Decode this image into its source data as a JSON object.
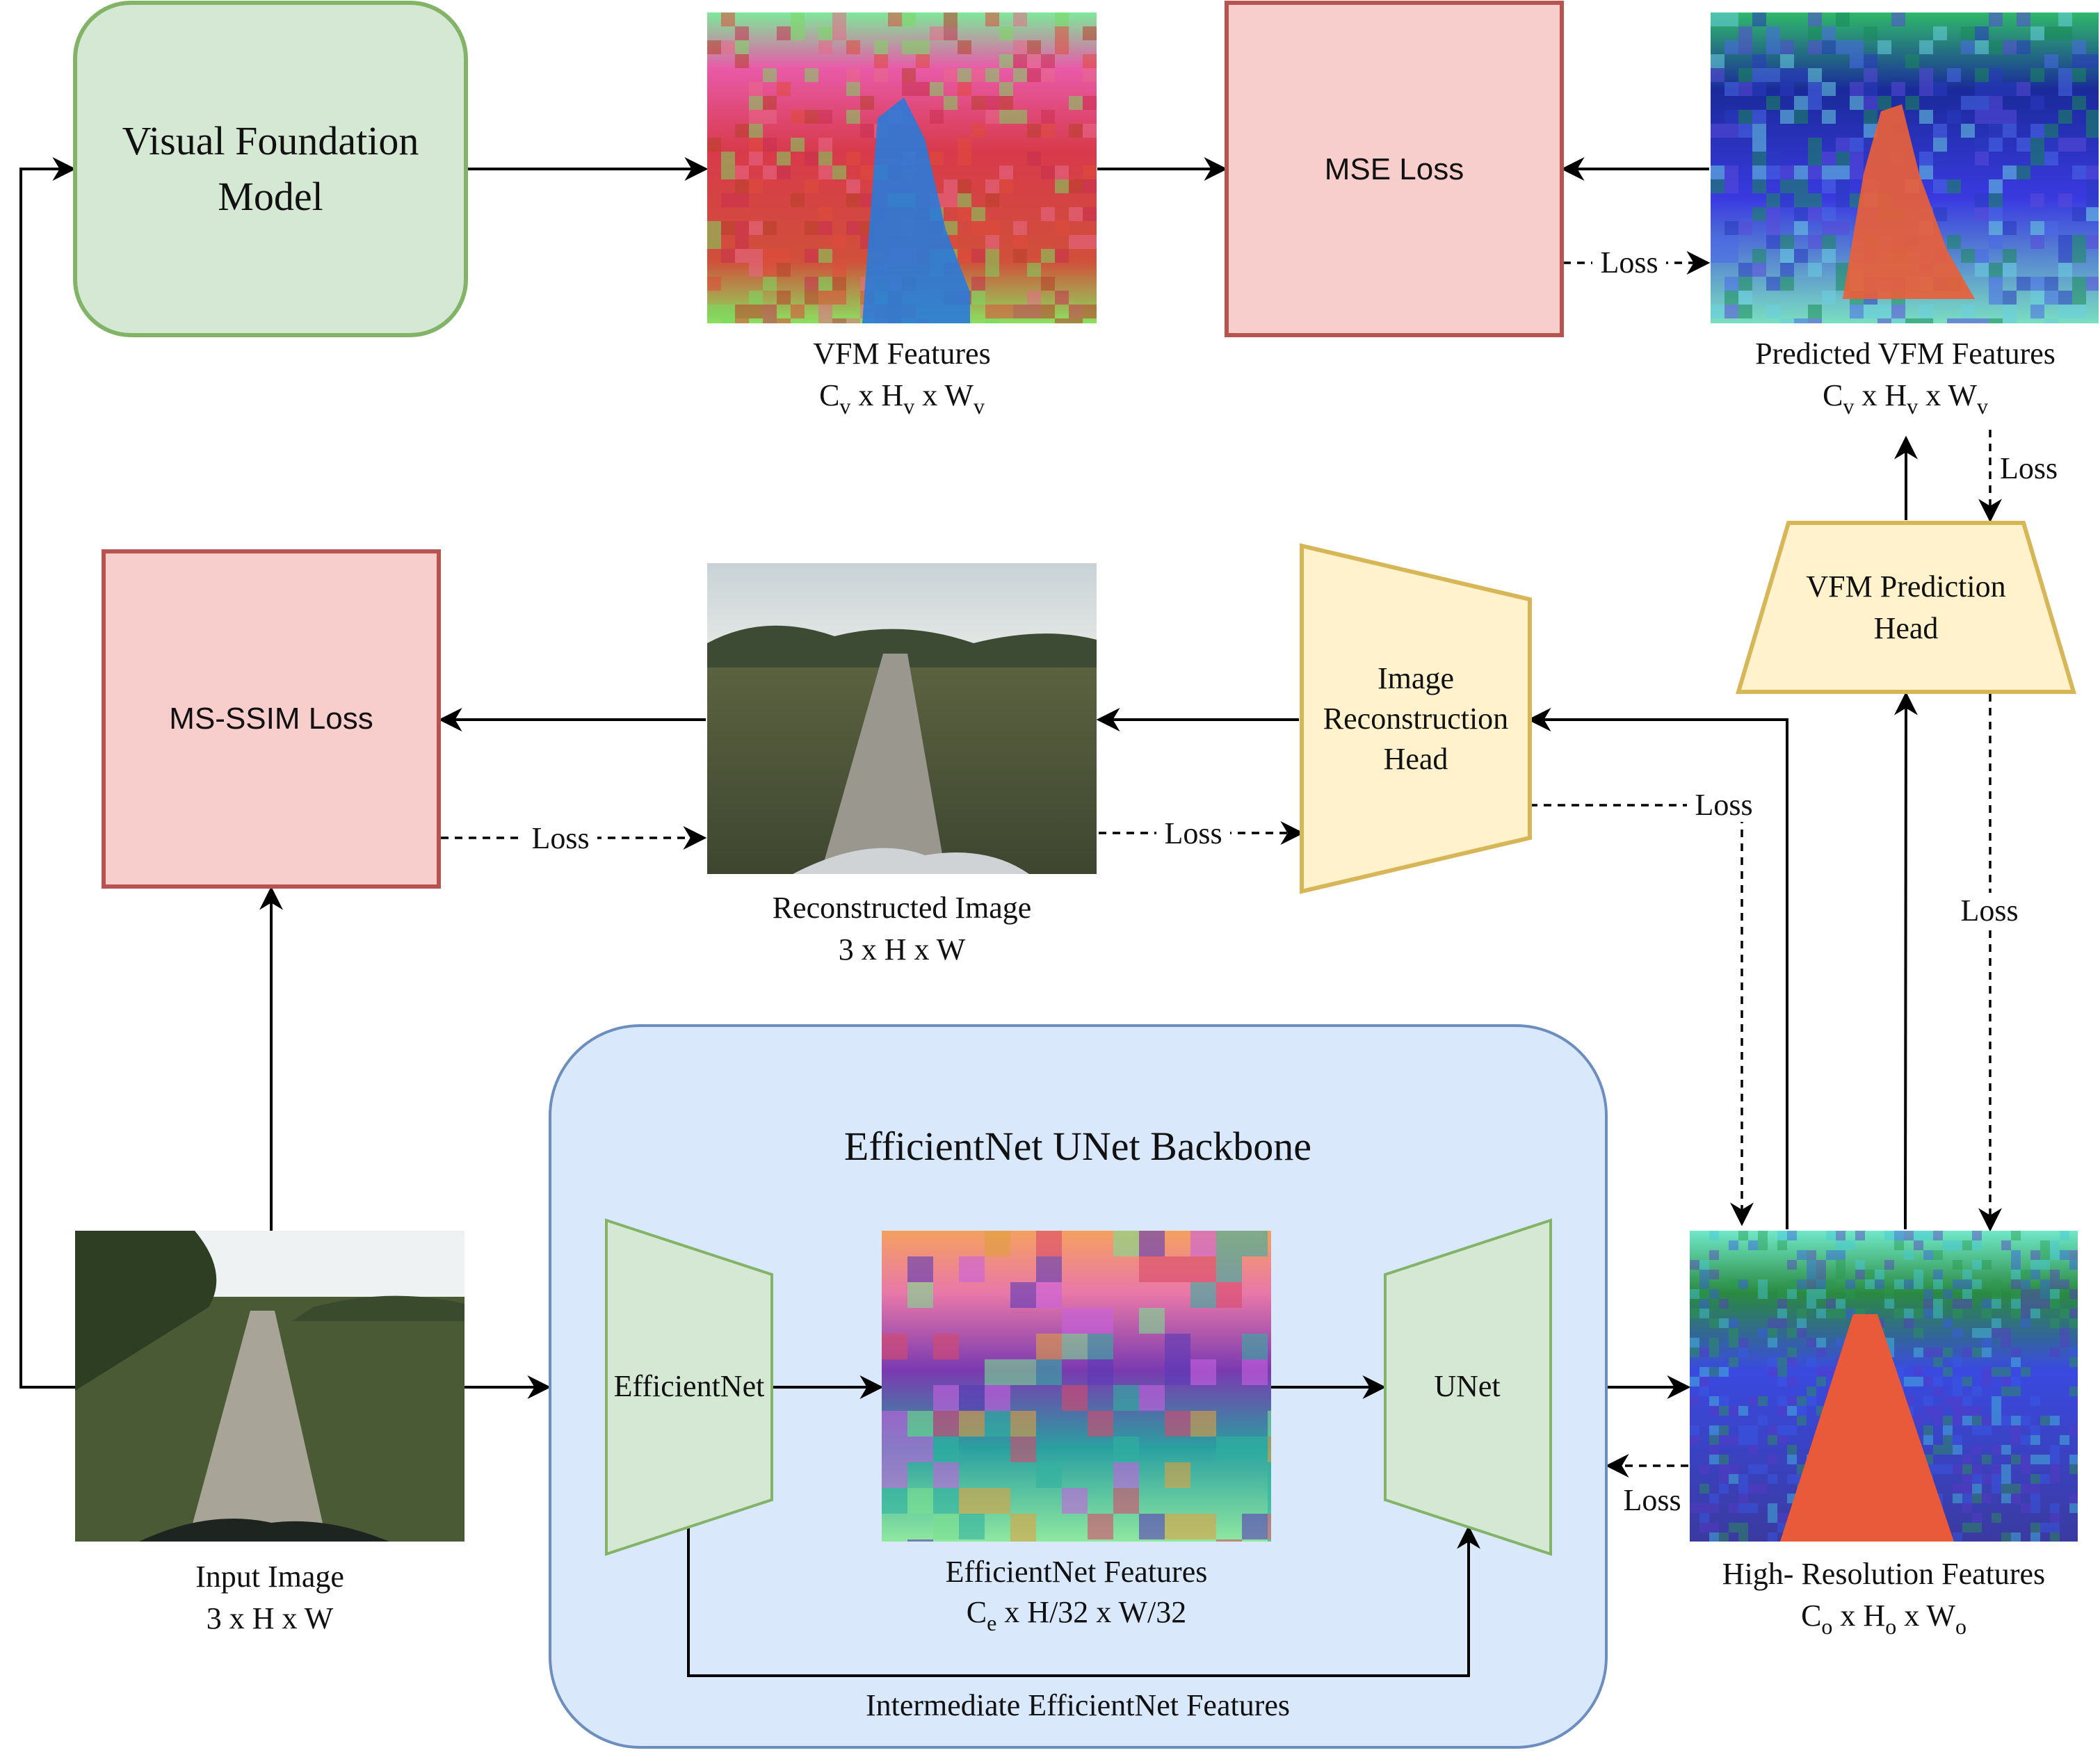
{
  "colors": {
    "green_fill": "#d5e8d4",
    "green_stroke": "#82b366",
    "red_fill": "#f8cecc",
    "red_stroke": "#b85450",
    "yellow_fill": "#fff2cc",
    "yellow_stroke": "#d6b656",
    "blue_fill": "#dae8fc",
    "blue_stroke": "#6c8ebf"
  },
  "vfm_model": {
    "line1": "Visual Foundation",
    "line2": "Model"
  },
  "mse_loss": "MSE Loss",
  "ms_ssim_loss": "MS-SSIM Loss",
  "vfm_features": {
    "title": "VFM Features",
    "dims": [
      "C",
      "v",
      " x H",
      "v",
      " x W",
      "v"
    ]
  },
  "predicted_vfm_features": {
    "title": "Predicted VFM Features",
    "dims": [
      "C",
      "v",
      " x H",
      "v",
      " x W",
      "v"
    ]
  },
  "reconstructed_image": {
    "title": "Reconstructed Image",
    "dims": "3 x H x W"
  },
  "image_reconstruction_head": {
    "line1": "Image",
    "line2": "Reconstruction",
    "line3": "Head"
  },
  "vfm_prediction_head": {
    "line1": "VFM Prediction",
    "line2": "Head"
  },
  "backbone": {
    "title": "EfficientNet UNet Backbone",
    "efficientnet_label": "EfficientNet",
    "unet_label": "UNet",
    "features_title": "EfficientNet Features",
    "features_dims": [
      "C",
      "e",
      " x H/32 x W/32"
    ],
    "intermediate_label": "Intermediate EfficientNet Features"
  },
  "input_image": {
    "title": "Input Image",
    "dims": "3 x H x W"
  },
  "high_res_features": {
    "title": "High- Resolution Features",
    "dims": [
      "C",
      "o",
      " x H",
      "o",
      " x W",
      "o"
    ]
  },
  "loss_labels": [
    "Loss",
    "Loss",
    "Loss",
    "Loss",
    "Loss",
    "Loss",
    "Loss"
  ]
}
